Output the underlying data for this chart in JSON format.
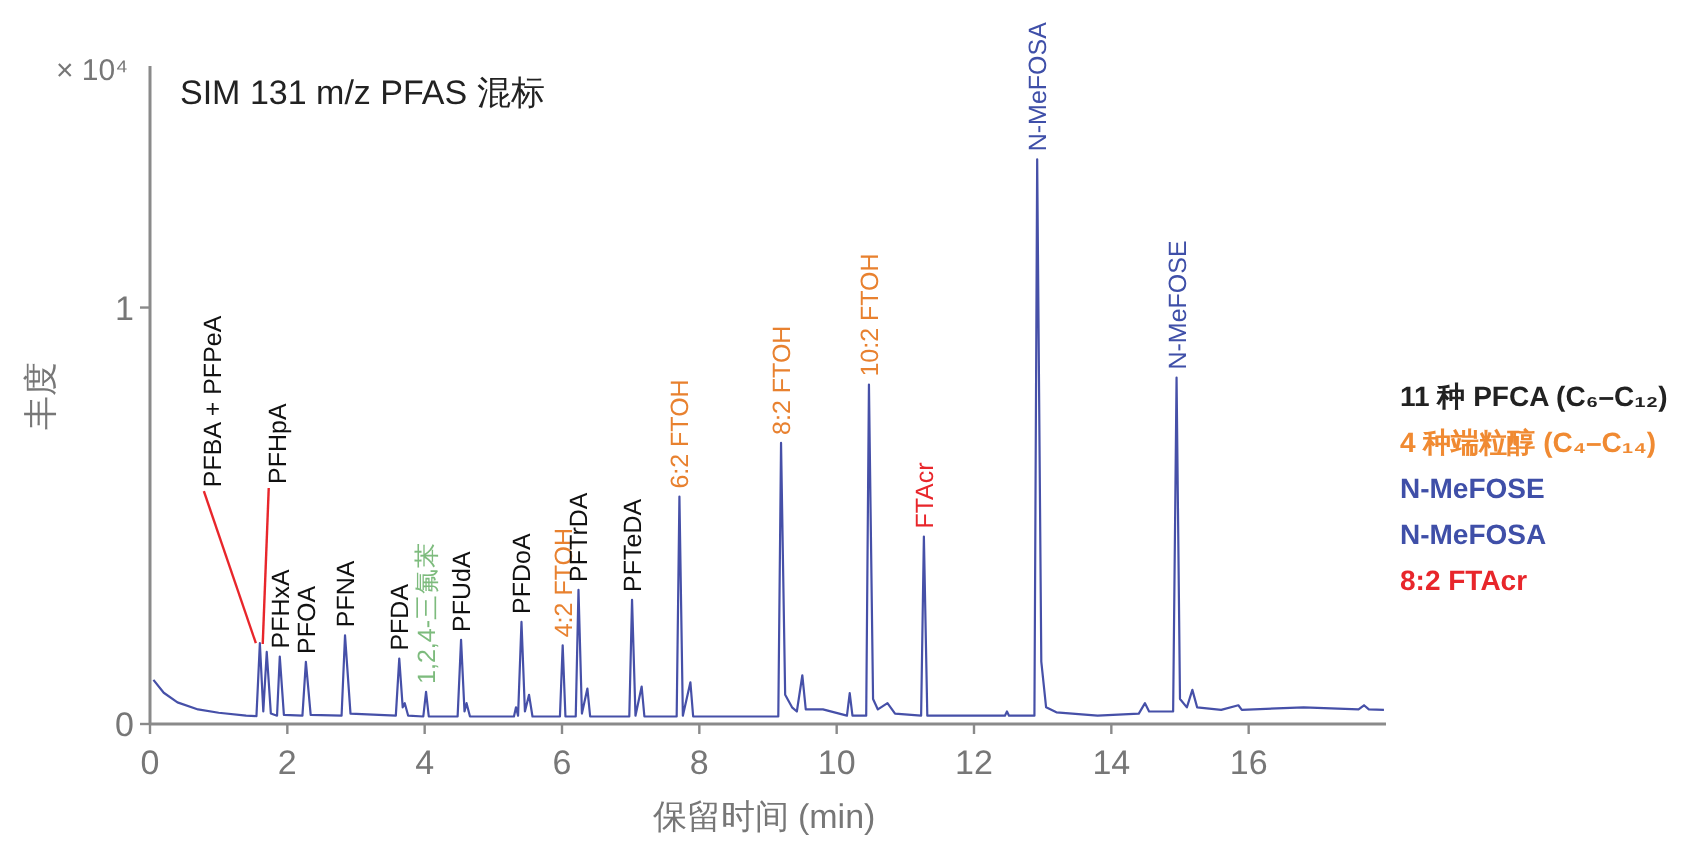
{
  "chart_data": {
    "type": "line",
    "title": "SIM 131 m/z PFAS 混标",
    "xlabel": "保留时间 (min)",
    "ylabel": "丰度",
    "xlim": [
      0,
      18
    ],
    "xticks": [
      0,
      2,
      4,
      6,
      8,
      10,
      12,
      14,
      16
    ],
    "ylim": [
      0,
      1.58
    ],
    "yticks": [
      0,
      1
    ],
    "grid": false,
    "series": [
      {
        "color": "#4650a8",
        "x": [
          0.05,
          0.2,
          0.4,
          0.7,
          1.0,
          1.4,
          1.55,
          1.6,
          1.65,
          1.7,
          1.76,
          1.85,
          1.89,
          1.95,
          2.22,
          2.27,
          2.34,
          2.79,
          2.84,
          2.92,
          3.58,
          3.63,
          3.68,
          3.71,
          3.76,
          3.98,
          4.02,
          4.06,
          4.48,
          4.53,
          4.58,
          4.61,
          4.66,
          5.3,
          5.33,
          5.36,
          5.41,
          5.46,
          5.52,
          5.57,
          5.97,
          6.01,
          6.05,
          6.2,
          6.24,
          6.29,
          6.37,
          6.41,
          6.98,
          7.02,
          7.07,
          7.16,
          7.2,
          7.67,
          7.71,
          7.76,
          7.87,
          7.91,
          9.15,
          9.19,
          9.25,
          9.35,
          9.42,
          9.5,
          9.55,
          9.8,
          10.15,
          10.19,
          10.23,
          10.43,
          10.47,
          10.53,
          10.6,
          10.74,
          10.85,
          11.23,
          11.27,
          11.32,
          12.45,
          12.48,
          12.51,
          12.88,
          12.92,
          12.98,
          13.05,
          13.2,
          13.8,
          14.4,
          14.49,
          14.55,
          14.9,
          14.95,
          15.0,
          15.1,
          15.18,
          15.25,
          15.6,
          15.85,
          15.9,
          16.8,
          17.6,
          17.68,
          17.75,
          17.97
        ],
        "values": [
          0.106,
          0.075,
          0.052,
          0.035,
          0.027,
          0.02,
          0.019,
          0.194,
          0.03,
          0.173,
          0.025,
          0.02,
          0.162,
          0.022,
          0.02,
          0.149,
          0.022,
          0.02,
          0.213,
          0.025,
          0.02,
          0.157,
          0.04,
          0.05,
          0.02,
          0.018,
          0.077,
          0.018,
          0.018,
          0.202,
          0.03,
          0.05,
          0.018,
          0.018,
          0.04,
          0.02,
          0.245,
          0.03,
          0.07,
          0.018,
          0.018,
          0.189,
          0.018,
          0.018,
          0.322,
          0.025,
          0.085,
          0.018,
          0.018,
          0.298,
          0.02,
          0.09,
          0.018,
          0.018,
          0.546,
          0.02,
          0.1,
          0.018,
          0.018,
          0.675,
          0.07,
          0.04,
          0.03,
          0.117,
          0.035,
          0.035,
          0.02,
          0.074,
          0.02,
          0.02,
          0.815,
          0.06,
          0.035,
          0.05,
          0.025,
          0.02,
          0.45,
          0.02,
          0.02,
          0.03,
          0.02,
          0.02,
          1.356,
          0.15,
          0.04,
          0.028,
          0.02,
          0.025,
          0.05,
          0.03,
          0.03,
          0.832,
          0.06,
          0.04,
          0.082,
          0.04,
          0.034,
          0.045,
          0.034,
          0.04,
          0.035,
          0.045,
          0.035,
          0.034
        ]
      }
    ],
    "annotations": [
      "× 10⁴",
      {
        "text": "PFBA + PFPeA",
        "x": 1.6,
        "y": 0.194
      },
      {
        "text": "PFHpA",
        "x": 1.7,
        "y": 0.173
      },
      {
        "text": "PFHxA",
        "x": 1.89,
        "y": 0.162
      },
      {
        "text": "PFOA",
        "x": 2.27,
        "y": 0.149
      },
      {
        "text": "PFNA",
        "x": 2.84,
        "y": 0.213
      },
      {
        "text": "PFDA",
        "x": 3.63,
        "y": 0.157
      },
      {
        "text": "1,2,4-三氟苯",
        "x": 4.02,
        "y": 0.077
      },
      {
        "text": "PFUdA",
        "x": 4.53,
        "y": 0.202
      },
      {
        "text": "PFDoA",
        "x": 5.41,
        "y": 0.245
      },
      {
        "text": "4:2 FTOH",
        "x": 6.01,
        "y": 0.189
      },
      {
        "text": "PFTrDA",
        "x": 6.24,
        "y": 0.322
      },
      {
        "text": "PFTeDA",
        "x": 7.02,
        "y": 0.298
      },
      {
        "text": "6:2 FTOH",
        "x": 7.71,
        "y": 0.546
      },
      {
        "text": "8:2 FTOH",
        "x": 9.19,
        "y": 0.675
      },
      {
        "text": "10:2 FTOH",
        "x": 10.47,
        "y": 0.815
      },
      {
        "text": "FTAcr",
        "x": 11.27,
        "y": 0.45
      },
      {
        "text": "N-MeFOSA",
        "x": 12.92,
        "y": 1.356
      },
      {
        "text": "N-MeFOSE",
        "x": 14.95,
        "y": 0.832
      },
      "11 种 PFCA (C₆–C₁₂)",
      "4 种端粒醇 (C₄–C₁₄)",
      "N-MeFOSE",
      "N-MeFOSA",
      "8:2 FTAcr"
    ]
  }
}
